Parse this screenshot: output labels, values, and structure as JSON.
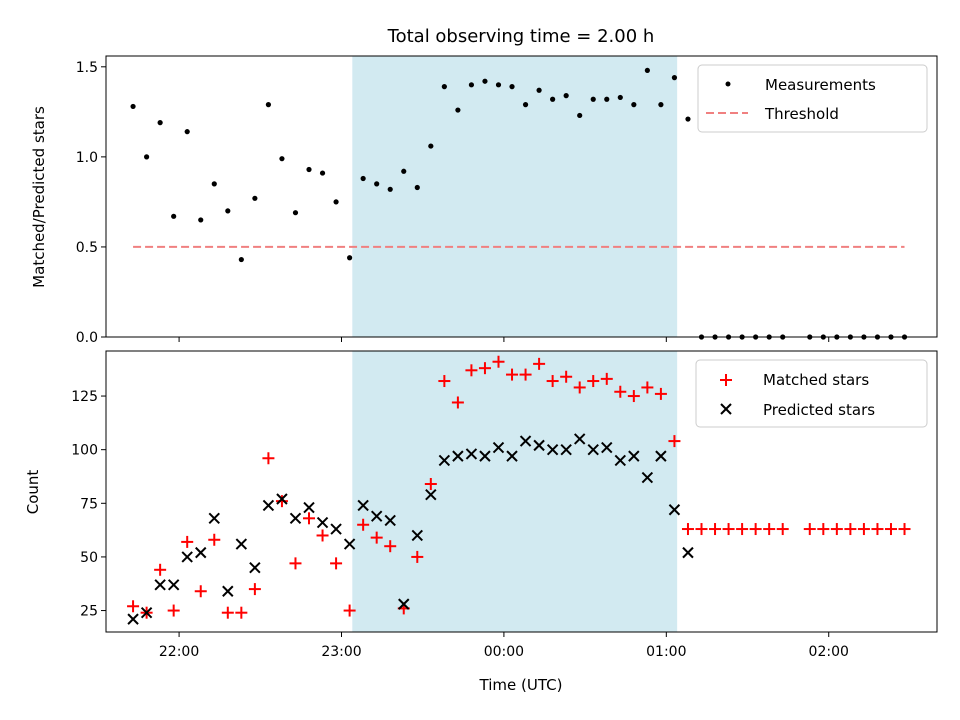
{
  "chart_data": [
    {
      "type": "scatter",
      "title": "Total observing time = 2.00 h",
      "ylabel": "Matched/Predicted stars",
      "xlabel": "",
      "ylim": [
        0,
        1.56
      ],
      "yticks": [
        0.0,
        0.5,
        1.0,
        1.5
      ],
      "ytick_labels": [
        "0.0",
        "0.5",
        "1.0",
        "1.5"
      ],
      "xlim": [
        "21:33",
        "02:40"
      ],
      "shaded_interval": {
        "start": "23:04",
        "end": "01:04",
        "color": "#add8e6"
      },
      "legend_position": "top-right",
      "series": [
        {
          "name": "Measurements",
          "marker": "dot",
          "color": "#000000",
          "points": [
            [
              "21:43",
              1.28
            ],
            [
              "21:48",
              1.0
            ],
            [
              "21:53",
              1.19
            ],
            [
              "21:58",
              0.67
            ],
            [
              "22:03",
              1.14
            ],
            [
              "22:08",
              0.65
            ],
            [
              "22:13",
              0.85
            ],
            [
              "22:18",
              0.7
            ],
            [
              "22:23",
              0.43
            ],
            [
              "22:28",
              0.77
            ],
            [
              "22:33",
              1.29
            ],
            [
              "22:38",
              0.99
            ],
            [
              "22:43",
              0.69
            ],
            [
              "22:48",
              0.93
            ],
            [
              "22:53",
              0.91
            ],
            [
              "22:58",
              0.75
            ],
            [
              "23:03",
              0.44
            ],
            [
              "23:08",
              0.88
            ],
            [
              "23:13",
              0.85
            ],
            [
              "23:18",
              0.82
            ],
            [
              "23:23",
              0.92
            ],
            [
              "23:28",
              0.83
            ],
            [
              "23:33",
              1.06
            ],
            [
              "23:38",
              1.39
            ],
            [
              "23:43",
              1.26
            ],
            [
              "23:48",
              1.4
            ],
            [
              "23:53",
              1.42
            ],
            [
              "23:58",
              1.4
            ],
            [
              "00:03",
              1.39
            ],
            [
              "00:08",
              1.29
            ],
            [
              "00:13",
              1.37
            ],
            [
              "00:18",
              1.32
            ],
            [
              "00:23",
              1.34
            ],
            [
              "00:28",
              1.23
            ],
            [
              "00:33",
              1.32
            ],
            [
              "00:38",
              1.32
            ],
            [
              "00:43",
              1.33
            ],
            [
              "00:48",
              1.29
            ],
            [
              "00:53",
              1.48
            ],
            [
              "00:58",
              1.29
            ],
            [
              "01:03",
              1.44
            ],
            [
              "01:08",
              1.21
            ],
            [
              "01:13",
              0.0
            ],
            [
              "01:18",
              0.0
            ],
            [
              "01:23",
              0.0
            ],
            [
              "01:28",
              0.0
            ],
            [
              "01:33",
              0.0
            ],
            [
              "01:38",
              0.0
            ],
            [
              "01:43",
              0.0
            ],
            [
              "01:53",
              0.0
            ],
            [
              "01:58",
              0.0
            ],
            [
              "02:03",
              0.0
            ],
            [
              "02:08",
              0.0
            ],
            [
              "02:13",
              0.0
            ],
            [
              "02:18",
              0.0
            ],
            [
              "02:23",
              0.0
            ],
            [
              "02:28",
              0.0
            ]
          ]
        },
        {
          "name": "Threshold",
          "type": "line",
          "style": "dashed",
          "color": "#f08080",
          "points": [
            [
              "21:43",
              0.5
            ],
            [
              "02:28",
              0.5
            ]
          ]
        }
      ]
    },
    {
      "type": "scatter",
      "title": "",
      "ylabel": "Count",
      "xlabel": "Time (UTC)",
      "ylim": [
        15,
        146
      ],
      "yticks": [
        25,
        50,
        75,
        100,
        125
      ],
      "ytick_labels": [
        "25",
        "50",
        "75",
        "100",
        "125"
      ],
      "xlim": [
        "21:33",
        "02:40"
      ],
      "xticks": [
        "22:00",
        "23:00",
        "00:00",
        "01:00",
        "02:00"
      ],
      "xtick_labels": [
        "22:00",
        "23:00",
        "00:00",
        "01:00",
        "02:00"
      ],
      "shaded_interval": {
        "start": "23:04",
        "end": "01:04",
        "color": "#add8e6"
      },
      "legend_position": "top-right",
      "series": [
        {
          "name": "Matched stars",
          "marker": "plus",
          "color": "#ff0000",
          "points": [
            [
              "21:43",
              27
            ],
            [
              "21:48",
              24
            ],
            [
              "21:53",
              44
            ],
            [
              "21:58",
              25
            ],
            [
              "22:03",
              57
            ],
            [
              "22:08",
              34
            ],
            [
              "22:13",
              58
            ],
            [
              "22:18",
              24
            ],
            [
              "22:23",
              24
            ],
            [
              "22:28",
              35
            ],
            [
              "22:33",
              96
            ],
            [
              "22:38",
              76
            ],
            [
              "22:43",
              47
            ],
            [
              "22:48",
              68
            ],
            [
              "22:53",
              60
            ],
            [
              "22:58",
              47
            ],
            [
              "23:03",
              25
            ],
            [
              "23:08",
              65
            ],
            [
              "23:13",
              59
            ],
            [
              "23:18",
              55
            ],
            [
              "23:23",
              26
            ],
            [
              "23:28",
              50
            ],
            [
              "23:33",
              84
            ],
            [
              "23:38",
              132
            ],
            [
              "23:43",
              122
            ],
            [
              "23:48",
              137
            ],
            [
              "23:53",
              138
            ],
            [
              "23:58",
              141
            ],
            [
              "00:03",
              135
            ],
            [
              "00:08",
              135
            ],
            [
              "00:13",
              140
            ],
            [
              "00:18",
              132
            ],
            [
              "00:23",
              134
            ],
            [
              "00:28",
              129
            ],
            [
              "00:33",
              132
            ],
            [
              "00:38",
              133
            ],
            [
              "00:43",
              127
            ],
            [
              "00:48",
              125
            ],
            [
              "00:53",
              129
            ],
            [
              "00:58",
              126
            ],
            [
              "01:03",
              104
            ],
            [
              "01:08",
              63
            ],
            [
              "01:13",
              63
            ],
            [
              "01:18",
              63
            ],
            [
              "01:23",
              63
            ],
            [
              "01:28",
              63
            ],
            [
              "01:33",
              63
            ],
            [
              "01:38",
              63
            ],
            [
              "01:43",
              63
            ],
            [
              "01:53",
              63
            ],
            [
              "01:58",
              63
            ],
            [
              "02:03",
              63
            ],
            [
              "02:08",
              63
            ],
            [
              "02:13",
              63
            ],
            [
              "02:18",
              63
            ],
            [
              "02:23",
              63
            ],
            [
              "02:28",
              63
            ]
          ]
        },
        {
          "name": "Predicted stars",
          "marker": "x",
          "color": "#000000",
          "points": [
            [
              "21:43",
              21
            ],
            [
              "21:48",
              24
            ],
            [
              "21:53",
              37
            ],
            [
              "21:58",
              37
            ],
            [
              "22:03",
              50
            ],
            [
              "22:08",
              52
            ],
            [
              "22:13",
              68
            ],
            [
              "22:18",
              34
            ],
            [
              "22:23",
              56
            ],
            [
              "22:28",
              45
            ],
            [
              "22:33",
              74
            ],
            [
              "22:38",
              77
            ],
            [
              "22:43",
              68
            ],
            [
              "22:48",
              73
            ],
            [
              "22:53",
              66
            ],
            [
              "22:58",
              63
            ],
            [
              "23:03",
              56
            ],
            [
              "23:08",
              74
            ],
            [
              "23:13",
              69
            ],
            [
              "23:18",
              67
            ],
            [
              "23:23",
              28
            ],
            [
              "23:28",
              60
            ],
            [
              "23:33",
              79
            ],
            [
              "23:38",
              95
            ],
            [
              "23:43",
              97
            ],
            [
              "23:48",
              98
            ],
            [
              "23:53",
              97
            ],
            [
              "23:58",
              101
            ],
            [
              "00:03",
              97
            ],
            [
              "00:08",
              104
            ],
            [
              "00:13",
              102
            ],
            [
              "00:18",
              100
            ],
            [
              "00:23",
              100
            ],
            [
              "00:28",
              105
            ],
            [
              "00:33",
              100
            ],
            [
              "00:38",
              101
            ],
            [
              "00:43",
              95
            ],
            [
              "00:48",
              97
            ],
            [
              "00:53",
              87
            ],
            [
              "00:58",
              97
            ],
            [
              "01:03",
              72
            ],
            [
              "01:08",
              52
            ]
          ]
        }
      ]
    }
  ]
}
